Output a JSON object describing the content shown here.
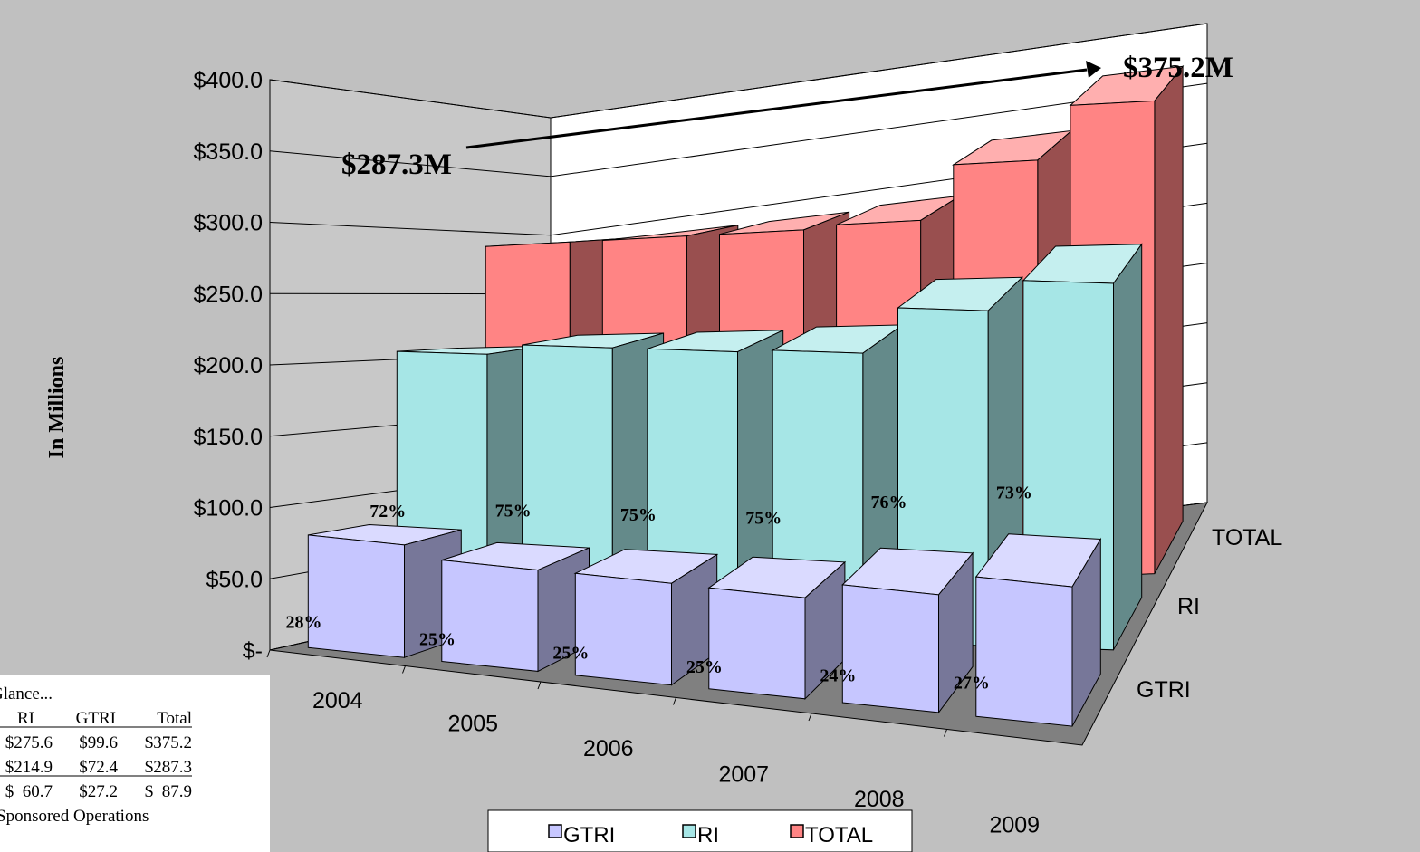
{
  "chart_data": {
    "type": "bar",
    "title": "",
    "ylabel": "In Millions",
    "xlabel": "",
    "categories": [
      "2004",
      "2005",
      "2006",
      "2007",
      "2008",
      "2009"
    ],
    "ylim": [
      0,
      400
    ],
    "y_tick_labels": [
      "$-",
      "$50.0",
      "$100.0",
      "$150.0",
      "$200.0",
      "$250.0",
      "$300.0",
      "$350.0",
      "$400.0"
    ],
    "series": [
      {
        "name": "GTRI",
        "values": [
          80,
          72,
          72.4,
          72,
          84,
          99.6
        ],
        "percent_labels": [
          "28%",
          "25%",
          "25%",
          "25%",
          "24%",
          "27%"
        ]
      },
      {
        "name": "RI",
        "values": [
          207,
          214.9,
          215,
          217,
          252,
          275.6
        ],
        "percent_labels": [
          "72%",
          "75%",
          "75%",
          "75%",
          "76%",
          "73%"
        ]
      },
      {
        "name": "TOTAL",
        "values": [
          287.3,
          287.3,
          287.3,
          290,
          333,
          375.2
        ],
        "percent_labels": []
      }
    ],
    "depth_labels": [
      "TOTAL",
      "RI",
      "GTRI"
    ],
    "annotations": [
      "$287.3M",
      "$375.2M"
    ],
    "legend_position": "bottom",
    "grid": true,
    "colors": {
      "GTRI": "#c6c6ff",
      "RI": "#a6e6e6",
      "TOTAL": "#ff8484",
      "plot_background": "#c0c0c0",
      "back_wall": "#ffffff",
      "side_wall": "#c8c8c8",
      "floor": "#808080"
    }
  },
  "glance_table": {
    "title": "Glance...",
    "headers": [
      "RI",
      "GTRI",
      "Total"
    ],
    "rows": [
      [
        "$275.6",
        "$99.6",
        "$375.2"
      ],
      [
        "$214.9",
        "$72.4",
        "$287.3"
      ],
      [
        "$  60.7",
        "$27.2",
        "$  87.9"
      ]
    ],
    "footer": "Sponsored Operations"
  }
}
